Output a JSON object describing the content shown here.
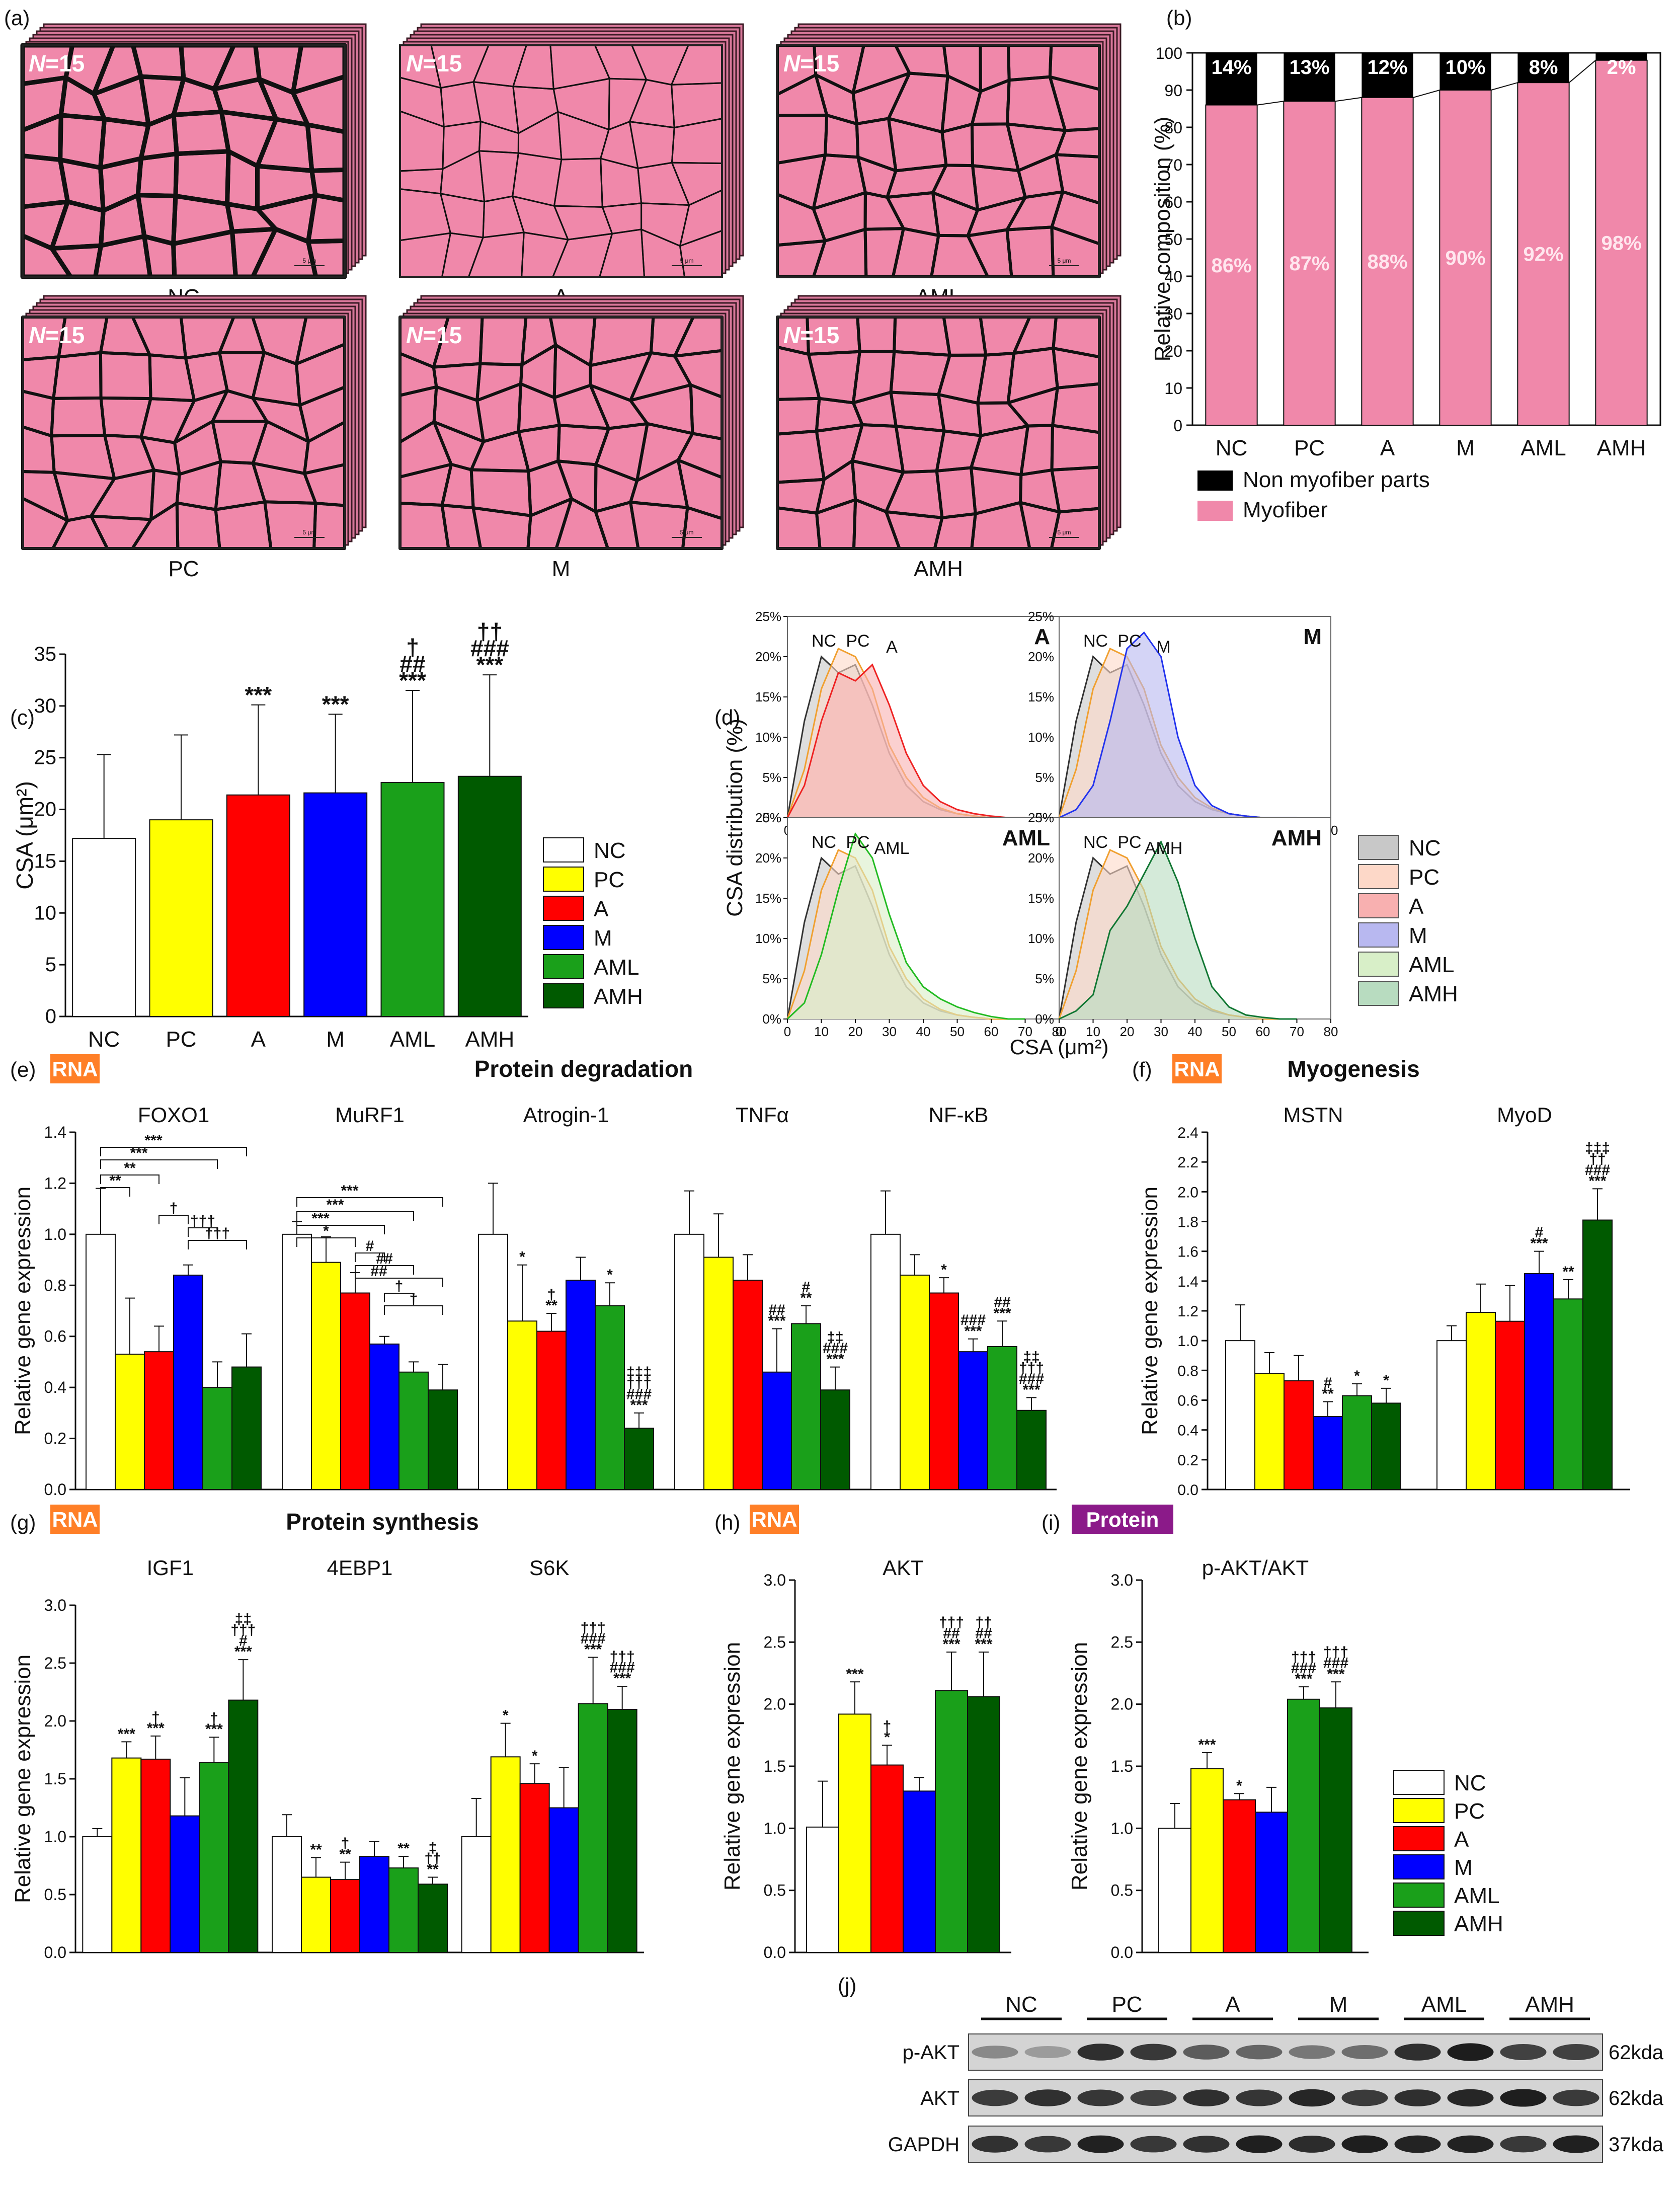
{
  "colors": {
    "NC": "#ffffff",
    "PC": "#ffff00",
    "A": "#ff0000",
    "M": "#0000ff",
    "AML": "#1aa01a",
    "AMH": "#005a00",
    "pink": "#f088aa",
    "black": "#000000",
    "rna_badge": "#ff7f27",
    "protein_badge": "#8b1a89"
  },
  "groups": [
    "NC",
    "PC",
    "A",
    "M",
    "AML",
    "AMH"
  ],
  "panels": {
    "a": {
      "label": "(a)",
      "n_label": "N",
      "n_value": "=15",
      "tiles": [
        "NC",
        "A",
        "AML",
        "PC",
        "M",
        "AMH"
      ],
      "scale_label": "5 μm"
    },
    "b": {
      "label": "(b)"
    },
    "c": {
      "label": "(c)"
    },
    "d": {
      "label": "(d)"
    },
    "e": {
      "label": "(e)",
      "badge": "RNA",
      "title": "Protein degradation"
    },
    "f": {
      "label": "(f)",
      "badge": "RNA",
      "title": "Myogenesis"
    },
    "g": {
      "label": "(g)",
      "badge": "RNA",
      "title": "Protein synthesis"
    },
    "h": {
      "label": "(h)",
      "badge": "RNA"
    },
    "i": {
      "label": "(i)",
      "badge": "Protein"
    },
    "j": {
      "label": "(j)",
      "rows": [
        "p-AKT",
        "AKT",
        "GAPDH"
      ],
      "sizes": [
        "62kda",
        "62kda",
        "37kda"
      ]
    }
  },
  "chart_data": [
    {
      "id": "b",
      "type": "bar",
      "stacked": true,
      "categories": [
        "NC",
        "PC",
        "A",
        "M",
        "AML",
        "AMH"
      ],
      "series": [
        {
          "name": "Myofiber",
          "values": [
            86,
            87,
            88,
            90,
            92,
            98
          ],
          "labels": [
            "86%",
            "87%",
            "88%",
            "90%",
            "92%",
            "98%"
          ]
        },
        {
          "name": "Non myofiber parts",
          "values": [
            14,
            13,
            12,
            10,
            8,
            2
          ],
          "labels": [
            "14%",
            "13%",
            "12%",
            "10%",
            "8%",
            "2%"
          ]
        }
      ],
      "ylabel": "Relative composition (%)",
      "ylim": [
        0,
        100
      ],
      "yticks": [
        "0",
        "10",
        "20",
        "30",
        "40",
        "50",
        "60",
        "70",
        "80",
        "90",
        "100"
      ],
      "legend": [
        "Non myofiber parts",
        "Myofiber"
      ]
    },
    {
      "id": "c",
      "type": "bar",
      "categories": [
        "NC",
        "PC",
        "A",
        "M",
        "AML",
        "AMH"
      ],
      "values": [
        17.2,
        19.0,
        21.4,
        21.6,
        22.6,
        23.2
      ],
      "errors": [
        8.1,
        8.2,
        8.7,
        7.6,
        8.9,
        9.8
      ],
      "sig": [
        "",
        "",
        "***",
        "***",
        "***|##|†",
        "***|###|††"
      ],
      "ylabel": "CSA (μm²)",
      "ylim": [
        0,
        35
      ],
      "yticks": [
        "0",
        "5",
        "10",
        "15",
        "20",
        "25",
        "30",
        "35"
      ],
      "legend": [
        "NC",
        "PC",
        "A",
        "M",
        "AML",
        "AMH"
      ]
    },
    {
      "id": "d",
      "type": "area",
      "ylabel": "CSA distribution (%)",
      "xlabel": "CSA (μm²)",
      "xlim": [
        0,
        80
      ],
      "ylim": [
        0,
        25
      ],
      "xticks": [
        "0",
        "10",
        "20",
        "30",
        "40",
        "50",
        "60",
        "70",
        "80"
      ],
      "yticks": [
        "0%",
        "5%",
        "10%",
        "15%",
        "20%",
        "25%"
      ],
      "x": [
        0,
        5,
        10,
        15,
        20,
        25,
        30,
        35,
        40,
        45,
        50,
        55,
        60,
        65,
        70
      ],
      "curves": {
        "NC": [
          0,
          12,
          20,
          18,
          19,
          14,
          8,
          4,
          2,
          1,
          0.5,
          0.2,
          0,
          0,
          0
        ],
        "PC": [
          0,
          6,
          16,
          21,
          20,
          16,
          9,
          5,
          2.5,
          1.2,
          0.5,
          0.2,
          0,
          0,
          0
        ],
        "A": [
          0,
          4,
          12,
          18,
          17,
          19,
          14,
          8,
          4,
          2,
          1,
          0.5,
          0.2,
          0,
          0
        ],
        "M": [
          0,
          1,
          4,
          12,
          21,
          23,
          20,
          10,
          4,
          1.5,
          0.5,
          0.2,
          0,
          0,
          0
        ],
        "AML": [
          0,
          2,
          8,
          16,
          23,
          20,
          13,
          7,
          4,
          2.5,
          1.5,
          0.8,
          0.3,
          0,
          0
        ],
        "AMH": [
          0,
          1,
          3,
          11,
          14,
          18,
          22,
          17,
          10,
          4,
          1.5,
          0.5,
          0.2,
          0,
          0
        ]
      },
      "subplots": [
        {
          "title": "A",
          "show": [
            "NC",
            "PC",
            "A"
          ],
          "labels": [
            "NC",
            "PC",
            "A"
          ]
        },
        {
          "title": "M",
          "show": [
            "NC",
            "PC",
            "M"
          ],
          "labels": [
            "NC",
            "PC",
            "M"
          ]
        },
        {
          "title": "AML",
          "show": [
            "NC",
            "PC",
            "AML"
          ],
          "labels": [
            "NC",
            "PC",
            "AML"
          ]
        },
        {
          "title": "AMH",
          "show": [
            "NC",
            "PC",
            "AMH"
          ],
          "labels": [
            "NC",
            "PC",
            "AMH"
          ]
        }
      ],
      "legend": [
        "NC",
        "PC",
        "A",
        "M",
        "AML",
        "AMH"
      ]
    },
    {
      "id": "e",
      "type": "bar",
      "ylabel": "Relative gene expression",
      "ylim": [
        0,
        1.4
      ],
      "yticks": [
        "0.0",
        "0.2",
        "0.4",
        "0.6",
        "0.8",
        "1.0",
        "1.2",
        "1.4"
      ],
      "genes": [
        "FOXO1",
        "MuRF1",
        "Atrogin-1",
        "TNFα",
        "NF-κB"
      ],
      "series": [
        {
          "name": "NC",
          "values": [
            1.0,
            1.0,
            1.0,
            1.0,
            1.0
          ],
          "errors": [
            0.18,
            0.05,
            0.2,
            0.17,
            0.17
          ]
        },
        {
          "name": "PC",
          "values": [
            0.53,
            0.89,
            0.66,
            0.91,
            0.84
          ],
          "errors": [
            0.22,
            0.1,
            0.22,
            0.17,
            0.08
          ]
        },
        {
          "name": "A",
          "values": [
            0.54,
            0.77,
            0.62,
            0.82,
            0.77
          ],
          "errors": [
            0.1,
            0.08,
            0.07,
            0.1,
            0.06
          ]
        },
        {
          "name": "M",
          "values": [
            0.84,
            0.57,
            0.82,
            0.46,
            0.54
          ],
          "errors": [
            0.04,
            0.03,
            0.09,
            0.17,
            0.05
          ]
        },
        {
          "name": "AML",
          "values": [
            0.4,
            0.46,
            0.72,
            0.65,
            0.56
          ],
          "errors": [
            0.1,
            0.04,
            0.09,
            0.07,
            0.1
          ]
        },
        {
          "name": "AMH",
          "values": [
            0.48,
            0.39,
            0.24,
            0.39,
            0.31
          ],
          "errors": [
            0.13,
            0.1,
            0.06,
            0.09,
            0.05
          ]
        }
      ],
      "sig": [
        [
          "",
          "",
          "",
          "",
          "",
          ""
        ],
        [
          "",
          "",
          "",
          "",
          "",
          ""
        ],
        [
          "",
          "*",
          "**|†",
          "",
          "*",
          "***|###|†††|‡‡‡"
        ],
        [
          "",
          "",
          "",
          "***|##",
          "**|#",
          "***|###|‡‡"
        ],
        [
          "",
          "",
          "*",
          "***|###",
          "***|##",
          "***|###|†††|‡‡"
        ]
      ],
      "brackets": [
        {
          "gene": 0,
          "from": 0,
          "to": 1,
          "label": "**"
        },
        {
          "gene": 0,
          "from": 0,
          "to": 2,
          "label": "**"
        },
        {
          "gene": 0,
          "from": 0,
          "to": 4,
          "label": "***"
        },
        {
          "gene": 0,
          "from": 0,
          "to": 5,
          "label": "***"
        },
        {
          "gene": 0,
          "from": 2,
          "to": 3,
          "label": "†"
        },
        {
          "gene": 0,
          "from": 3,
          "to": 4,
          "label": "†††"
        },
        {
          "gene": 0,
          "from": 3,
          "to": 5,
          "label": "†††"
        },
        {
          "gene": 1,
          "from": 0,
          "to": 2,
          "label": "*"
        },
        {
          "gene": 1,
          "from": 0,
          "to": 3,
          "label": "***"
        },
        {
          "gene": 1,
          "from": 0,
          "to": 4,
          "label": "***"
        },
        {
          "gene": 1,
          "from": 0,
          "to": 5,
          "label": "***"
        },
        {
          "gene": 1,
          "from": 2,
          "to": 3,
          "label": "#"
        },
        {
          "gene": 1,
          "from": 2,
          "to": 4,
          "label": "##"
        },
        {
          "gene": 1,
          "from": 2,
          "to": 5,
          "label": "##"
        },
        {
          "gene": 1,
          "from": 3,
          "to": 4,
          "label": "†"
        },
        {
          "gene": 1,
          "from": 3,
          "to": 5,
          "label": "†"
        }
      ]
    },
    {
      "id": "f",
      "type": "bar",
      "ylabel": "Relative gene expression",
      "ylim": [
        0,
        2.4
      ],
      "yticks": [
        "0.0",
        "0.2",
        "0.4",
        "0.6",
        "0.8",
        "1.0",
        "1.2",
        "1.4",
        "1.6",
        "1.8",
        "2.0",
        "2.2",
        "2.4"
      ],
      "genes": [
        "MSTN",
        "MyoD"
      ],
      "series": [
        {
          "name": "NC",
          "values": [
            1.0,
            1.0
          ],
          "errors": [
            0.24,
            0.1
          ]
        },
        {
          "name": "PC",
          "values": [
            0.78,
            1.19
          ],
          "errors": [
            0.14,
            0.19
          ]
        },
        {
          "name": "A",
          "values": [
            0.73,
            1.13
          ],
          "errors": [
            0.17,
            0.24
          ]
        },
        {
          "name": "M",
          "values": [
            0.49,
            1.45
          ],
          "errors": [
            0.1,
            0.15
          ]
        },
        {
          "name": "AML",
          "values": [
            0.63,
            1.28
          ],
          "errors": [
            0.08,
            0.13
          ]
        },
        {
          "name": "AMH",
          "values": [
            0.58,
            1.81
          ],
          "errors": [
            0.1,
            0.21
          ]
        }
      ],
      "sig": [
        [
          "",
          "",
          "",
          "**|#",
          "*",
          "*"
        ],
        [
          "",
          "",
          "",
          "***|#",
          "**",
          "***|###|††|‡‡‡"
        ]
      ]
    },
    {
      "id": "g",
      "type": "bar",
      "ylabel": "Relative gene expression",
      "ylim": [
        0,
        3.0
      ],
      "yticks": [
        "0.0",
        "0.5",
        "1.0",
        "1.5",
        "2.0",
        "2.5",
        "3.0"
      ],
      "genes": [
        "IGF1",
        "4EBP1",
        "S6K"
      ],
      "series": [
        {
          "name": "NC",
          "values": [
            1.0,
            1.0,
            1.0
          ],
          "errors": [
            0.07,
            0.19,
            0.33
          ]
        },
        {
          "name": "PC",
          "values": [
            1.68,
            0.65,
            1.69
          ],
          "errors": [
            0.14,
            0.17,
            0.29
          ]
        },
        {
          "name": "A",
          "values": [
            1.67,
            0.63,
            1.46
          ],
          "errors": [
            0.2,
            0.15,
            0.17
          ]
        },
        {
          "name": "M",
          "values": [
            1.18,
            0.83,
            1.25
          ],
          "errors": [
            0.33,
            0.13,
            0.35
          ]
        },
        {
          "name": "AML",
          "values": [
            1.64,
            0.73,
            2.15
          ],
          "errors": [
            0.22,
            0.1,
            0.4
          ]
        },
        {
          "name": "AMH",
          "values": [
            2.18,
            0.59,
            2.1
          ],
          "errors": [
            0.35,
            0.06,
            0.2
          ]
        }
      ],
      "sig": [
        [
          "",
          "***",
          "***|†",
          "",
          "***|†",
          "***|#|†††|‡‡"
        ],
        [
          "",
          "**",
          "**|†",
          "",
          "**",
          "**|††|‡"
        ],
        [
          "",
          "*",
          "*",
          "",
          "***|###|†††",
          "***|###|†††"
        ]
      ]
    },
    {
      "id": "h",
      "type": "bar",
      "ylabel": "Relative gene expression",
      "ylim": [
        0,
        3.0
      ],
      "yticks": [
        "0.0",
        "0.5",
        "1.0",
        "1.5",
        "2.0",
        "2.5",
        "3.0"
      ],
      "genes": [
        "AKT"
      ],
      "series": [
        {
          "name": "NC",
          "values": [
            1.01
          ],
          "errors": [
            0.37
          ]
        },
        {
          "name": "PC",
          "values": [
            1.92
          ],
          "errors": [
            0.26
          ]
        },
        {
          "name": "A",
          "values": [
            1.51
          ],
          "errors": [
            0.16
          ]
        },
        {
          "name": "M",
          "values": [
            1.3
          ],
          "errors": [
            0.11
          ]
        },
        {
          "name": "AML",
          "values": [
            2.11
          ],
          "errors": [
            0.31
          ]
        },
        {
          "name": "AMH",
          "values": [
            2.06
          ],
          "errors": [
            0.36
          ]
        }
      ],
      "sig": [
        [
          "",
          "***",
          "*|†",
          "",
          "***|##|†††",
          "***|##|††"
        ]
      ]
    },
    {
      "id": "i",
      "type": "bar",
      "ylabel": "Relative gene expression",
      "ylim": [
        0,
        3.0
      ],
      "yticks": [
        "0.0",
        "0.5",
        "1.0",
        "1.5",
        "2.0",
        "2.5",
        "3.0"
      ],
      "genes": [
        "p-AKT/AKT"
      ],
      "series": [
        {
          "name": "NC",
          "values": [
            1.0
          ],
          "errors": [
            0.2
          ]
        },
        {
          "name": "PC",
          "values": [
            1.48
          ],
          "errors": [
            0.13
          ]
        },
        {
          "name": "A",
          "values": [
            1.23
          ],
          "errors": [
            0.05
          ]
        },
        {
          "name": "M",
          "values": [
            1.13
          ],
          "errors": [
            0.2
          ]
        },
        {
          "name": "AML",
          "values": [
            2.04
          ],
          "errors": [
            0.1
          ]
        },
        {
          "name": "AMH",
          "values": [
            1.97
          ],
          "errors": [
            0.21
          ]
        }
      ],
      "sig": [
        [
          "",
          "***",
          "*",
          "",
          "***|###|†††",
          "***|###|†††"
        ]
      ],
      "legend": [
        "NC",
        "PC",
        "A",
        "M",
        "AML",
        "AMH"
      ]
    }
  ]
}
